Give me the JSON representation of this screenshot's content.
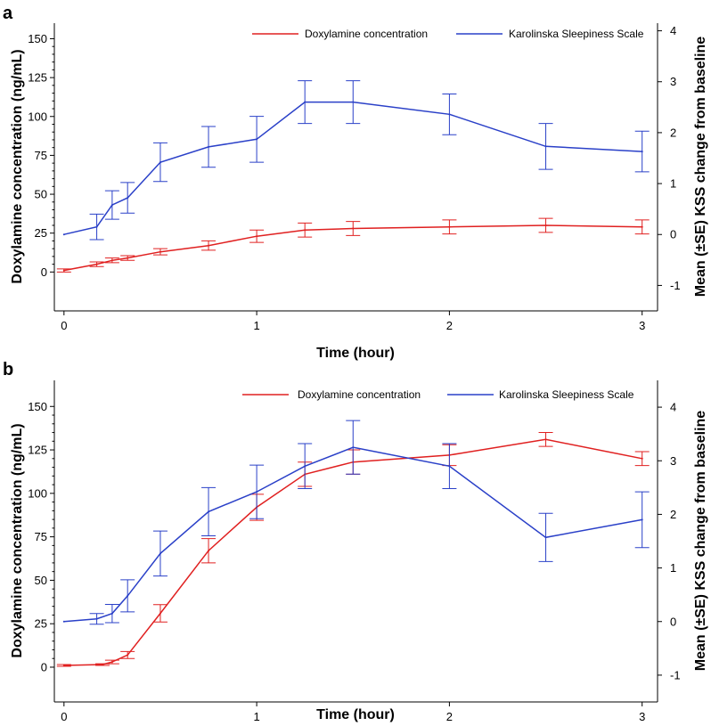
{
  "figure": {
    "panels": [
      "a",
      "b"
    ]
  },
  "chart_data": [
    {
      "type": "line",
      "panel": "a",
      "xlabel": "Time (hour)",
      "ylabel_left": "Doxylamine concentration (ng/mL)",
      "ylabel_right": "Mean (±SE) KSS change from baseline",
      "xlim": [
        -0.05,
        3.08
      ],
      "xticks": [
        0,
        1,
        2,
        3
      ],
      "ylim_left": [
        -25,
        160
      ],
      "yticks_left": [
        0,
        25,
        50,
        75,
        100,
        125,
        150
      ],
      "ylim_right": [
        -1.5,
        4.15
      ],
      "yticks_right": [
        -1,
        0,
        1,
        2,
        3,
        4
      ],
      "legend": [
        "Doxylamine concentration",
        "Karolinska Sleepiness Scale"
      ],
      "series": [
        {
          "name": "Doxylamine concentration",
          "axis": "left",
          "color": "#e02020",
          "x": [
            0,
            0.17,
            0.25,
            0.33,
            0.5,
            0.75,
            1,
            1.25,
            1.5,
            2,
            2.5,
            3
          ],
          "y": [
            1,
            5,
            7.5,
            9,
            13,
            17,
            23,
            27,
            28,
            29,
            30,
            29
          ],
          "err": [
            1,
            1.5,
            1.5,
            1.5,
            2,
            3,
            4,
            4.5,
            4.5,
            4.5,
            4.5,
            4.5
          ]
        },
        {
          "name": "Karolinska Sleepiness Scale",
          "axis": "right",
          "color": "#2a40c8",
          "x": [
            0,
            0.17,
            0.25,
            0.33,
            0.5,
            0.75,
            1,
            1.25,
            1.5,
            2,
            2.5,
            3
          ],
          "y": [
            0,
            0.15,
            0.58,
            0.72,
            1.42,
            1.72,
            1.87,
            2.6,
            2.6,
            2.36,
            1.73,
            1.63
          ],
          "err": [
            0,
            0.25,
            0.28,
            0.3,
            0.38,
            0.4,
            0.45,
            0.42,
            0.42,
            0.4,
            0.45,
            0.4
          ]
        }
      ]
    },
    {
      "type": "line",
      "panel": "b",
      "xlabel": "Time (hour)",
      "ylabel_left": "Doxylamine concentration (ng/mL)",
      "ylabel_right": "Mean (±SE) KSS change from baseline",
      "xlim": [
        -0.05,
        3.08
      ],
      "xticks": [
        0,
        1,
        2,
        3
      ],
      "ylim_left": [
        -20,
        165
      ],
      "yticks_left": [
        0,
        25,
        50,
        75,
        100,
        125,
        150
      ],
      "ylim_right": [
        -1.5,
        4.5
      ],
      "yticks_right": [
        -1,
        0,
        1,
        2,
        3,
        4
      ],
      "legend": [
        "Doxylamine concentration",
        "Karolinska Sleepiness Scale"
      ],
      "series": [
        {
          "name": "Doxylamine concentration",
          "axis": "left",
          "color": "#e02020",
          "x": [
            0,
            0.2,
            0.25,
            0.33,
            0.5,
            0.75,
            1,
            1.25,
            1.5,
            2,
            2.5,
            3
          ],
          "y": [
            1,
            1.5,
            3,
            7,
            31,
            67,
            92,
            111,
            118,
            122,
            131,
            120
          ],
          "err": [
            0.5,
            0.5,
            1,
            2,
            5,
            7,
            7.5,
            7,
            7,
            6,
            4,
            4
          ]
        },
        {
          "name": "Karolinska Sleepiness Scale",
          "axis": "right",
          "color": "#2a40c8",
          "x": [
            0,
            0.17,
            0.25,
            0.33,
            0.5,
            0.75,
            1,
            1.25,
            1.5,
            2,
            2.5,
            3
          ],
          "y": [
            0,
            0.05,
            0.15,
            0.48,
            1.27,
            2.05,
            2.42,
            2.9,
            3.25,
            2.9,
            1.57,
            1.9
          ],
          "err": [
            0,
            0.1,
            0.17,
            0.3,
            0.42,
            0.45,
            0.5,
            0.42,
            0.5,
            0.42,
            0.45,
            0.52
          ]
        }
      ]
    }
  ]
}
